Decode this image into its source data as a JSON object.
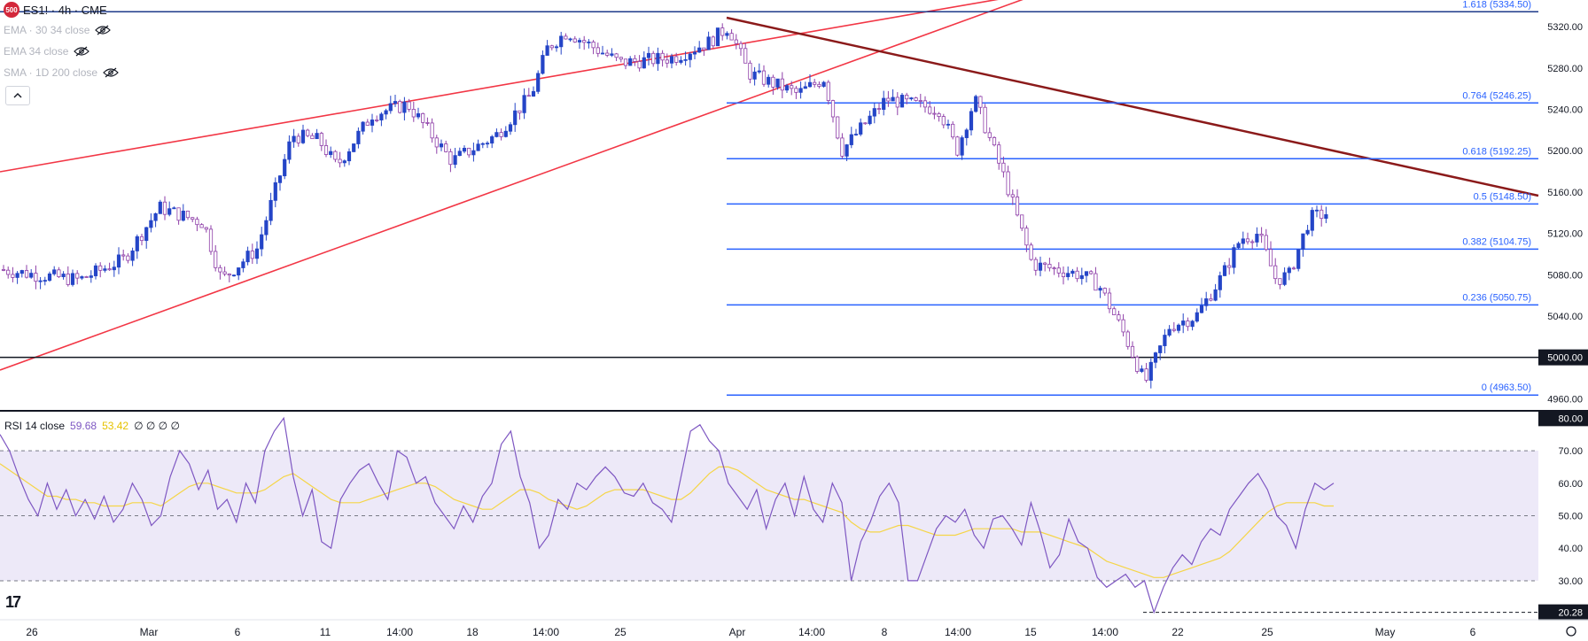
{
  "header": {
    "badge": "500",
    "symbol_line": "ES1! · 4h · CME"
  },
  "indicators": [
    {
      "label": "EMA · 30 34 close",
      "icon": "eye-off-icon"
    },
    {
      "label": "EMA 34 close",
      "icon": "eye-off-icon"
    },
    {
      "label": "SMA · 1D 200 close",
      "icon": "eye-off-icon"
    }
  ],
  "rsi_legend": {
    "name": "RSI 14 close",
    "rsi_value": "59.68",
    "ma_value": "53.42",
    "extras": "∅ ∅ ∅ ∅"
  },
  "colors": {
    "up": "#2445c7",
    "down": "#8e3ea8",
    "fib": "#2962ff",
    "channel": "#f23645",
    "trend": "#8b1a1a",
    "rsi": "#7e57c2",
    "rsi_ma": "#f5d547",
    "rsi_band": "#ede9f8"
  },
  "chart_data": [
    {
      "type": "candlestick",
      "title": "ES1! · 4h · CME",
      "y_ticks": [
        "5320.00",
        "5280.00",
        "5240.00",
        "5200.00",
        "5160.00",
        "5120.00",
        "5080.00",
        "5040.00",
        "4960.00"
      ],
      "price_tag": "5000.00",
      "ylim": [
        4950,
        5345
      ],
      "x_ticks": [
        "26",
        "Mar",
        "6",
        "11",
        "14:00",
        "18",
        "14:00",
        "25",
        "Apr",
        "14:00",
        "8",
        "14:00",
        "15",
        "14:00",
        "22",
        "25",
        "May",
        "6"
      ],
      "fib_levels": [
        {
          "label": "1.618 (5334.50)",
          "value": 5334.5
        },
        {
          "label": "0.764 (5246.25)",
          "value": 5246.25
        },
        {
          "label": "0.618 (5192.25)",
          "value": 5192.25
        },
        {
          "label": "0.5 (5148.50)",
          "value": 5148.5
        },
        {
          "label": "0.382 (5104.75)",
          "value": 5104.75
        },
        {
          "label": "0.236 (5050.75)",
          "value": 5050.75
        },
        {
          "label": "0 (4963.50)",
          "value": 4963.5
        }
      ],
      "horizontal_level": 5000,
      "grid": false
    },
    {
      "type": "line",
      "title": "RSI 14 close",
      "y_ticks": [
        "80.00",
        "70.00",
        "60.00",
        "50.00",
        "40.00",
        "30.00"
      ],
      "min_tag": "20.28",
      "ylim": [
        18,
        82
      ],
      "bands": [
        30,
        50,
        70
      ],
      "series": [
        {
          "name": "RSI",
          "values": [
            75,
            70,
            62,
            55,
            50,
            60,
            52,
            58,
            50,
            55,
            49,
            56,
            48,
            52,
            60,
            55,
            47,
            50,
            62,
            70,
            66,
            58,
            64,
            52,
            55,
            48,
            60,
            54,
            70,
            76,
            80,
            62,
            50,
            58,
            42,
            40,
            55,
            60,
            64,
            66,
            60,
            55,
            70,
            68,
            60,
            62,
            54,
            50,
            46,
            53,
            48,
            56,
            60,
            72,
            76,
            62,
            54,
            40,
            44,
            55,
            52,
            60,
            58,
            62,
            65,
            62,
            57,
            56,
            60,
            54,
            52,
            48,
            62,
            76,
            78,
            73,
            70,
            60,
            56,
            52,
            58,
            46,
            55,
            60,
            50,
            62,
            52,
            48,
            60,
            54,
            30,
            42,
            48,
            56,
            60,
            54,
            30,
            30,
            38,
            46,
            50,
            48,
            52,
            44,
            40,
            49,
            50,
            46,
            41,
            54,
            45,
            34,
            38,
            49,
            42,
            40,
            31,
            28,
            30,
            32,
            28,
            30,
            20.28,
            28,
            34,
            38,
            35,
            42,
            46,
            44,
            52,
            56,
            60,
            63,
            58,
            50,
            47,
            40,
            52,
            60,
            58,
            60
          ]
        },
        {
          "name": "RSI MA",
          "values": [
            66,
            64,
            62,
            60,
            58,
            56,
            56,
            55,
            55,
            54,
            54,
            53,
            53,
            53,
            54,
            54,
            54,
            53,
            55,
            57,
            59,
            60,
            60,
            59,
            58,
            57,
            57,
            57,
            58,
            60,
            62,
            63,
            61,
            59,
            57,
            55,
            54,
            54,
            54,
            55,
            56,
            57,
            58,
            59,
            60,
            60,
            59,
            57,
            55,
            54,
            53,
            52,
            52,
            54,
            56,
            58,
            58,
            57,
            55,
            54,
            53,
            52,
            53,
            55,
            57,
            58,
            58,
            58,
            58,
            57,
            56,
            55,
            55,
            57,
            60,
            63,
            65,
            65,
            64,
            62,
            60,
            58,
            57,
            56,
            55,
            55,
            54,
            53,
            52,
            51,
            48,
            46,
            45,
            45,
            46,
            47,
            47,
            46,
            45,
            44,
            44,
            44,
            45,
            46,
            46,
            46,
            46,
            46,
            45,
            45,
            45,
            44,
            43,
            42,
            41,
            40,
            38,
            36,
            35,
            34,
            33,
            32,
            31,
            31,
            32,
            33,
            34,
            35,
            36,
            37,
            39,
            42,
            45,
            48,
            51,
            53,
            54,
            54,
            54,
            54,
            53,
            53
          ]
        }
      ],
      "grid": false
    }
  ]
}
